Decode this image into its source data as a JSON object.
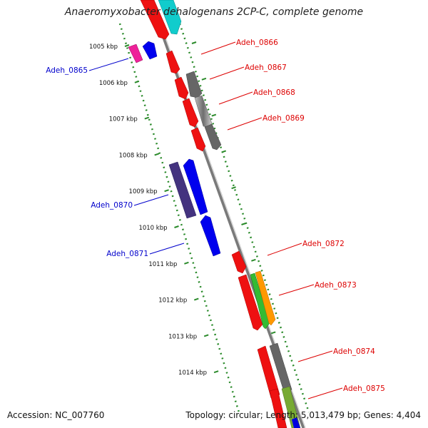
{
  "title": "Anaeromyxobacter dehalogenans 2CP-C, complete genome",
  "footer": {
    "accession": "Accession: NC_007760",
    "summary": "Topology: circular; Length: 5,013,479 bp; Genes: 4,404"
  },
  "scale_labels": [
    {
      "text": "1005 kbp",
      "pos": 1005
    },
    {
      "text": "1006 kbp",
      "pos": 1006
    },
    {
      "text": "1007 kbp",
      "pos": 1007
    },
    {
      "text": "1008 kbp",
      "pos": 1008
    },
    {
      "text": "1009 kbp",
      "pos": 1009
    },
    {
      "text": "1010 kbp",
      "pos": 1010
    },
    {
      "text": "1011 kbp",
      "pos": 1011
    },
    {
      "text": "1012 kbp",
      "pos": 1012
    },
    {
      "text": "1013 kbp",
      "pos": 1013
    },
    {
      "text": "1014 kbp",
      "pos": 1014
    }
  ],
  "gene_labels": [
    {
      "text": "Adeh_0866",
      "strand": "plus",
      "color": "#dd0000"
    },
    {
      "text": "Adeh_0867",
      "strand": "plus",
      "color": "#dd0000"
    },
    {
      "text": "Adeh_0868",
      "strand": "plus",
      "color": "#dd0000"
    },
    {
      "text": "Adeh_0869",
      "strand": "plus",
      "color": "#dd0000"
    },
    {
      "text": "Adeh_0872",
      "strand": "plus",
      "color": "#dd0000"
    },
    {
      "text": "Adeh_0873",
      "strand": "plus",
      "color": "#dd0000"
    },
    {
      "text": "Adeh_0874",
      "strand": "plus",
      "color": "#dd0000"
    },
    {
      "text": "Adeh_0875",
      "strand": "plus",
      "color": "#dd0000"
    },
    {
      "text": "Adeh_0865",
      "strand": "minus",
      "color": "#0000cc"
    },
    {
      "text": "Adeh_0870",
      "strand": "minus",
      "color": "#0000cc"
    },
    {
      "text": "Adeh_0871",
      "strand": "minus",
      "color": "#0000cc"
    }
  ],
  "colors": {
    "backbone": "#888888",
    "scale_dots": "#2a8a2a",
    "plus_gene": "#ee0000",
    "minus_gene": "#0000ee"
  }
}
